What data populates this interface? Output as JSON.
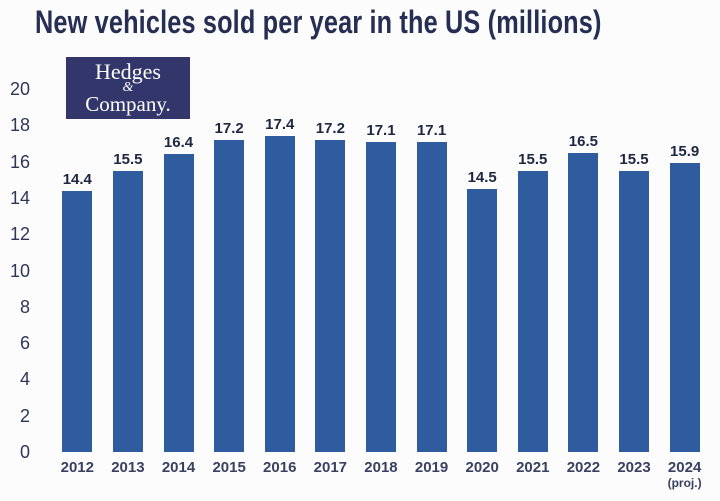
{
  "title": "New vehicles sold per year in the US (millions)",
  "logo": {
    "line1": "Hedges",
    "line2": "&",
    "line3": "Company."
  },
  "chart_data": {
    "type": "bar",
    "title": "New vehicles sold per year in the US (millions)",
    "categories": [
      "2012",
      "2013",
      "2014",
      "2015",
      "2016",
      "2017",
      "2018",
      "2019",
      "2020",
      "2021",
      "2022",
      "2023",
      "2024"
    ],
    "values": [
      14.4,
      15.5,
      16.4,
      17.2,
      17.4,
      17.2,
      17.1,
      17.1,
      14.5,
      15.5,
      16.5,
      15.5,
      15.9
    ],
    "last_category_note": "(proj.)",
    "xlabel": "",
    "ylabel": "",
    "ylim": [
      0,
      20
    ],
    "ytick_step": 2,
    "grid": false,
    "legend": false,
    "colors": {
      "bar": "#2f5c9e",
      "title": "#262f53",
      "value_label": "#1d2742",
      "year_label": "#394160",
      "ytick_label": "#2d3656",
      "logo_bg": "#32366a",
      "logo_text": "#ffffff",
      "background": "#fcfcfc"
    }
  }
}
